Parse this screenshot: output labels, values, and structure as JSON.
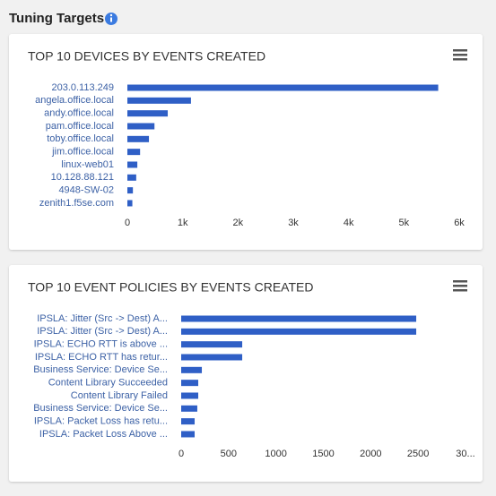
{
  "header": {
    "title": "Tuning Targets"
  },
  "chart_data": [
    {
      "type": "bar",
      "orientation": "horizontal",
      "title": "TOP 10 DEVICES BY EVENTS CREATED",
      "categories": [
        "203.0.113.249",
        "angela.office.local",
        "andy.office.local",
        "pam.office.local",
        "toby.office.local",
        "jim.office.local",
        "linux-web01",
        "10.128.88.121",
        "4948-SW-02",
        "zenith1.f5se.com"
      ],
      "values": [
        5620,
        1150,
        730,
        490,
        390,
        230,
        180,
        160,
        100,
        90
      ],
      "color": "#2f5fc6",
      "xlim": [
        0,
        6000
      ],
      "xticks": [
        0,
        {
          "value": 1000,
          "label": "1k"
        },
        {
          "value": 2000,
          "label": "2k"
        },
        {
          "value": 3000,
          "label": "3k"
        },
        {
          "value": 4000,
          "label": "4k"
        },
        {
          "value": 5000,
          "label": "5k"
        },
        {
          "value": 6000,
          "label": "6k"
        }
      ]
    },
    {
      "type": "bar",
      "orientation": "horizontal",
      "title": "TOP 10 EVENT POLICIES BY EVENTS CREATED",
      "categories": [
        "IPSLA: Jitter (Src -> Dest) A...",
        "IPSLA: Jitter (Src -> Dest) A...",
        "IPSLA: ECHO RTT is above ...",
        "IPSLA: ECHO RTT has retur...",
        "Business Service: Device Se...",
        "Content Library Succeeded",
        "Content Library Failed",
        "Business Service: Device Se...",
        "IPSLA: Packet Loss has retu...",
        "IPSLA: Packet Loss Above ..."
      ],
      "values": [
        2480,
        2480,
        644,
        644,
        218,
        180,
        180,
        170,
        142,
        142
      ],
      "color": "#2f5fc6",
      "xlim": [
        0,
        3000
      ],
      "xticks": [
        0,
        500,
        1000,
        1500,
        2000,
        2500,
        {
          "value": 3000,
          "label": "30..."
        }
      ]
    }
  ]
}
